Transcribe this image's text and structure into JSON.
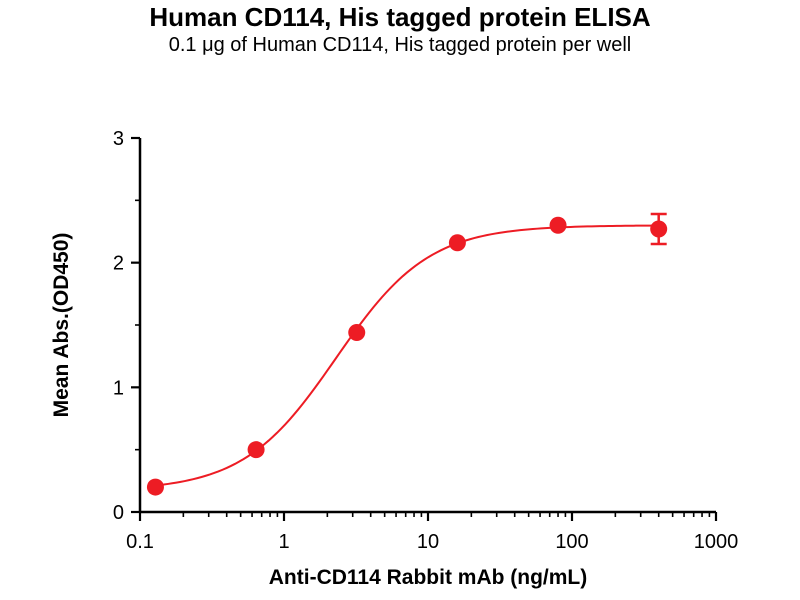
{
  "page": {
    "background_color": "#ffffff"
  },
  "chart_data": {
    "type": "scatter",
    "title": "Human CD114, His tagged protein ELISA",
    "subtitle": "0.1 μg of Human CD114, His tagged protein per well",
    "xlabel": "Anti-CD114 Rabbit mAb (ng/mL)",
    "ylabel": "Mean Abs.(OD450)",
    "x_scale": "log10",
    "xlim": [
      0.1,
      1000
    ],
    "ylim": [
      0,
      3
    ],
    "x_ticks": [
      0.1,
      1,
      10,
      100,
      1000
    ],
    "x_tick_labels": [
      "0.1",
      "1",
      "10",
      "100",
      "1000"
    ],
    "y_ticks": [
      0,
      1,
      2,
      3
    ],
    "y_tick_labels": [
      "0",
      "1",
      "2",
      "3"
    ],
    "y_minor_ticks": [
      0.5,
      1.5,
      2.5
    ],
    "grid": false,
    "legend": null,
    "marker_color": "#ed1c24",
    "line_color": "#ed1c24",
    "axis_color": "#000000",
    "points": [
      {
        "x": 0.128,
        "y": 0.2
      },
      {
        "x": 0.64,
        "y": 0.5
      },
      {
        "x": 3.2,
        "y": 1.44
      },
      {
        "x": 16,
        "y": 2.16
      },
      {
        "x": 80,
        "y": 2.3
      },
      {
        "x": 400,
        "y": 2.27,
        "error": 0.12
      }
    ],
    "fit": {
      "model": "4PL",
      "bottom": 0.17,
      "top": 2.3,
      "ec50": 2.3,
      "hill": 1.35
    }
  }
}
